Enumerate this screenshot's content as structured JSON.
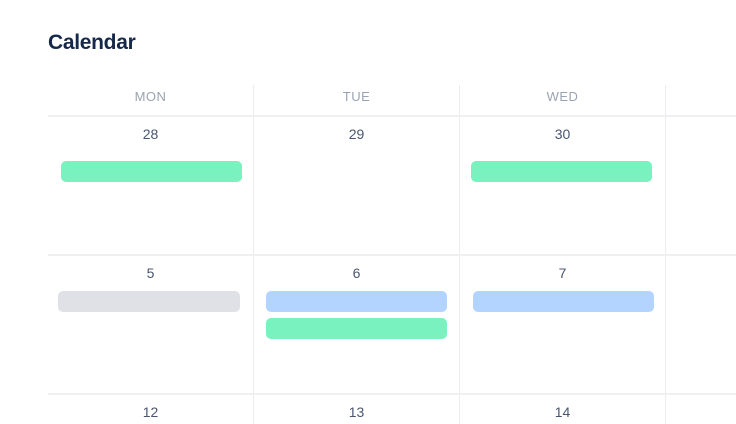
{
  "title": "Calendar",
  "days": [
    "MON",
    "TUE",
    "WED"
  ],
  "weeks": [
    {
      "dates": [
        "28",
        "29",
        "30"
      ]
    },
    {
      "dates": [
        "5",
        "6",
        "7"
      ]
    },
    {
      "dates": [
        "12",
        "13",
        "14"
      ]
    }
  ],
  "event_colors": {
    "green": "#79f2c0",
    "blue": "#b3d4ff",
    "gray": "#dfe1e6"
  },
  "events": [
    {
      "week": 1,
      "day": "MON",
      "color": "green"
    },
    {
      "week": 1,
      "day": "WED",
      "color": "green"
    },
    {
      "week": 2,
      "day": "MON",
      "color": "gray"
    },
    {
      "week": 2,
      "day": "TUE",
      "color": "blue"
    },
    {
      "week": 2,
      "day": "TUE",
      "color": "green"
    },
    {
      "week": 2,
      "day": "WED",
      "color": "blue"
    }
  ]
}
